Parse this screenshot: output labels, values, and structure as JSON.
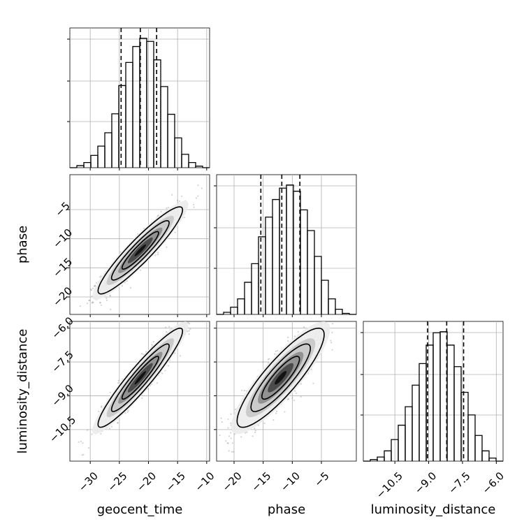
{
  "figure": {
    "colors": {
      "background": "#ffffff",
      "grid": "#b0b0b0",
      "line": "#000000",
      "scatter": "#7f7f7f",
      "contour_fill_levels": [
        "#ececec",
        "#c7c7c7",
        "#8c8c8c",
        "#444444",
        "#0d0d0d"
      ]
    }
  },
  "chart_data": {
    "type": "corner",
    "parameters": [
      "geocent_time",
      "phase",
      "luminosity_distance"
    ],
    "axes": {
      "geocent_time": {
        "range": [
          -33.5,
          -9.5
        ],
        "ticks": [
          -30,
          -25,
          -20,
          -15,
          -10
        ],
        "tick_labels": [
          "−30",
          "−25",
          "−20",
          "−15",
          "−10"
        ]
      },
      "phase": {
        "range": [
          -23,
          1
        ],
        "ticks": [
          -20,
          -15,
          -10,
          -5
        ],
        "tick_labels": [
          "−20",
          "−15",
          "−10",
          "−5"
        ]
      },
      "luminosity_distance": {
        "range": [
          -11.9,
          -5.7
        ],
        "ticks": [
          -10.5,
          -9.0,
          -7.5,
          -6.0
        ],
        "tick_labels": [
          "−10.5",
          "−9.0",
          "−7.5",
          "−6.0"
        ]
      }
    },
    "quantiles": {
      "geocent_time": [
        -24.7,
        -21.4,
        -18.6
      ],
      "phase": [
        -15.4,
        -11.8,
        -8.7
      ],
      "luminosity_distance": [
        -9.05,
        -8.2,
        -7.45
      ]
    },
    "histograms": {
      "geocent_time": {
        "bin_edges": [
          -33.5,
          -32.3,
          -31.1,
          -29.9,
          -28.7,
          -27.5,
          -26.3,
          -25.1,
          -23.9,
          -22.7,
          -21.5,
          -20.3,
          -19.1,
          -17.9,
          -16.7,
          -15.5,
          -14.3,
          -13.1,
          -11.9,
          -10.7,
          -9.5
        ],
        "counts": [
          0,
          4,
          10,
          24,
          42,
          68,
          105,
          160,
          205,
          236,
          252,
          246,
          210,
          158,
          104,
          58,
          26,
          10,
          3,
          0
        ]
      },
      "phase": {
        "bin_edges": [
          -23,
          -21.8,
          -20.6,
          -19.4,
          -18.2,
          -17.0,
          -15.8,
          -14.6,
          -13.4,
          -12.2,
          -11.0,
          -9.8,
          -8.6,
          -7.4,
          -6.2,
          -5.0,
          -3.8,
          -2.6,
          -1.4,
          -0.2,
          1.0
        ],
        "counts": [
          0,
          4,
          14,
          30,
          62,
          98,
          150,
          188,
          222,
          244,
          250,
          238,
          202,
          162,
          112,
          66,
          30,
          10,
          2,
          0
        ]
      },
      "luminosity_distance": {
        "bin_edges": [
          -11.9,
          -11.59,
          -11.28,
          -10.97,
          -10.66,
          -10.35,
          -10.04,
          -9.73,
          -9.42,
          -9.11,
          -8.8,
          -8.49,
          -8.18,
          -7.87,
          -7.56,
          -7.25,
          -6.94,
          -6.63,
          -6.32,
          -6.01,
          -5.7
        ],
        "counts": [
          0,
          3,
          8,
          20,
          42,
          70,
          106,
          148,
          190,
          226,
          250,
          252,
          226,
          184,
          134,
          90,
          50,
          20,
          6,
          0
        ]
      }
    },
    "pairs": [
      {
        "x": "geocent_time",
        "y": "phase",
        "mean": [
          -21.4,
          -12.0
        ],
        "sd": [
          3.3,
          3.4
        ],
        "corr": 0.93
      },
      {
        "x": "geocent_time",
        "y": "luminosity_distance",
        "mean": [
          -21.4,
          -8.2
        ],
        "sd": [
          3.3,
          1.0
        ],
        "corr": 0.94
      },
      {
        "x": "phase",
        "y": "luminosity_distance",
        "mean": [
          -12.0,
          -8.2
        ],
        "sd": [
          3.4,
          1.0
        ],
        "corr": 0.87
      }
    ],
    "grid": true
  }
}
